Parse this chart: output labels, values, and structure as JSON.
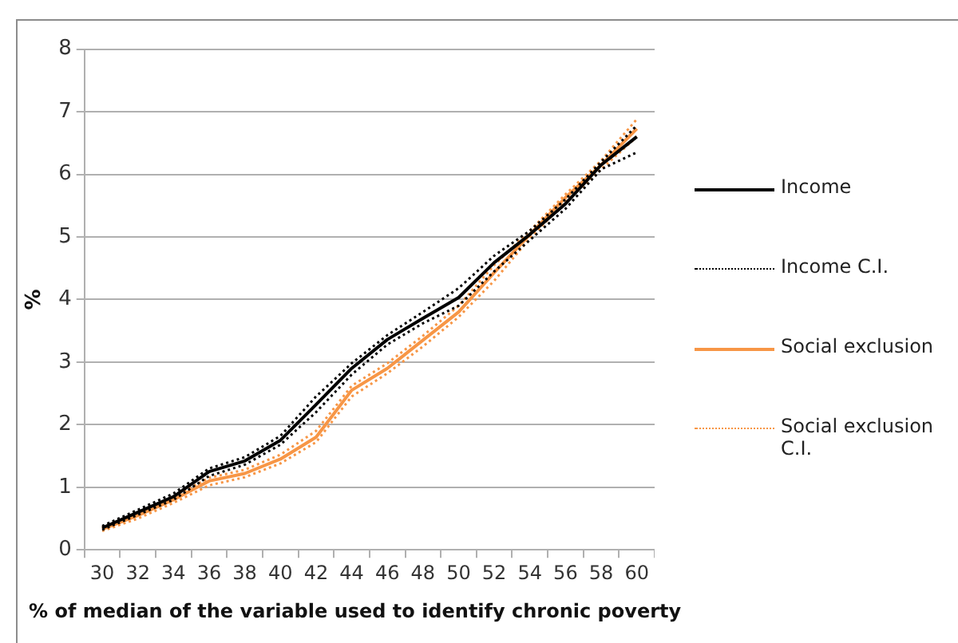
{
  "chart_data": {
    "type": "line",
    "xlabel": "% of median of the variable used to identify chronic poverty",
    "ylabel": "%",
    "categories": [
      "30",
      "32",
      "34",
      "36",
      "38",
      "40",
      "42",
      "44",
      "46",
      "48",
      "50",
      "52",
      "54",
      "56",
      "58",
      "60"
    ],
    "series": [
      {
        "name": "Income",
        "color": "#000000",
        "line_style": "solid",
        "values": [
          0.35,
          0.6,
          0.85,
          1.25,
          1.42,
          1.75,
          2.32,
          2.9,
          3.36,
          3.7,
          4.03,
          4.59,
          5.04,
          5.53,
          6.15,
          6.6
        ]
      },
      {
        "name": "Income C.I.",
        "color": "#000000",
        "line_style": "dotted",
        "values": [
          0.38,
          0.64,
          0.9,
          1.3,
          1.48,
          1.82,
          2.45,
          2.98,
          3.43,
          3.8,
          4.18,
          4.7,
          5.1,
          5.6,
          6.2,
          6.78
        ]
      },
      {
        "color": "#000000",
        "line_style": "dotted",
        "values": [
          0.32,
          0.56,
          0.8,
          1.18,
          1.36,
          1.68,
          2.2,
          2.8,
          3.28,
          3.62,
          3.9,
          4.45,
          4.95,
          5.45,
          6.08,
          6.35
        ]
      },
      {
        "name": "Social exclusion",
        "color": "#f79646",
        "line_style": "solid",
        "values": [
          0.33,
          0.55,
          0.8,
          1.1,
          1.22,
          1.45,
          1.8,
          2.55,
          2.9,
          3.35,
          3.8,
          4.43,
          5.04,
          5.63,
          6.15,
          6.73
        ]
      },
      {
        "name": "Social exclusion C.I.",
        "color": "#f79646",
        "line_style": "dotted",
        "values": [
          0.36,
          0.6,
          0.85,
          1.15,
          1.28,
          1.52,
          1.9,
          2.62,
          2.98,
          3.42,
          3.9,
          4.55,
          5.1,
          5.68,
          6.22,
          6.88
        ]
      },
      {
        "color": "#f79646",
        "line_style": "dotted",
        "values": [
          0.3,
          0.5,
          0.75,
          1.03,
          1.16,
          1.38,
          1.72,
          2.45,
          2.82,
          3.25,
          3.72,
          4.3,
          4.98,
          5.56,
          6.08,
          6.6
        ]
      }
    ],
    "ylim": [
      0,
      8
    ],
    "yticks": [
      0,
      1,
      2,
      3,
      4,
      5,
      6,
      7,
      8
    ],
    "grid": "y",
    "legend": "right",
    "marker": "none"
  }
}
